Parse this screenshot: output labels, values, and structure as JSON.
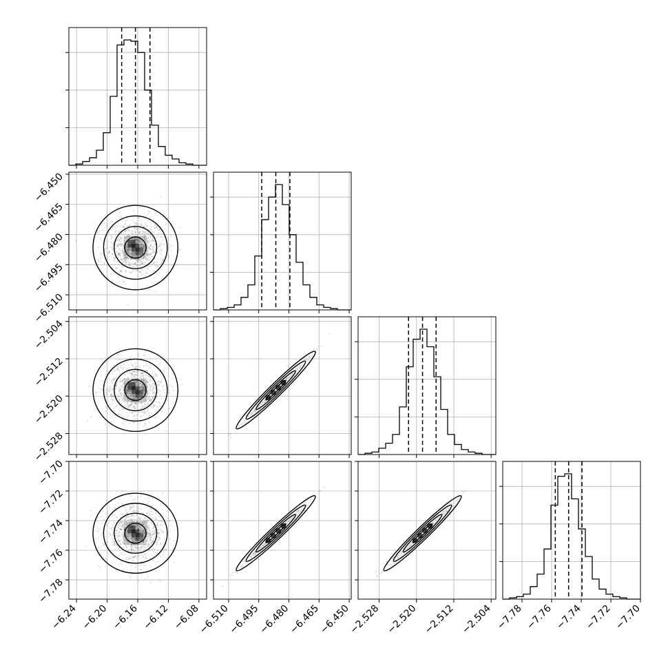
{
  "chart_data": {
    "type": "corner",
    "grid": true,
    "parameters": [
      {
        "index": 0,
        "range": [
          -6.25,
          -6.07
        ],
        "ticks": [
          "−6.24",
          "−6.20",
          "−6.16",
          "−6.12",
          "−6.08"
        ],
        "tick_values": [
          -6.24,
          -6.2,
          -6.16,
          -6.12,
          -6.08
        ],
        "median": -6.163,
        "quantiles": [
          -6.181,
          -6.144
        ]
      },
      {
        "index": 1,
        "range": [
          -6.5175,
          -6.449
        ],
        "ticks": [
          "−6.510",
          "−6.495",
          "−6.480",
          "−6.465",
          "−6.450"
        ],
        "tick_values": [
          -6.51,
          -6.495,
          -6.48,
          -6.465,
          -6.45
        ],
        "median": -6.4865,
        "quantiles": [
          -6.4935,
          -6.4795
        ]
      },
      {
        "index": 2,
        "range": [
          -2.5325,
          -2.503
        ],
        "ticks": [
          "−2.528",
          "−2.520",
          "−2.512",
          "−2.504"
        ],
        "tick_values": [
          -2.528,
          -2.52,
          -2.512,
          -2.504
        ],
        "median": -2.5187,
        "quantiles": [
          -2.5217,
          -2.5158
        ]
      },
      {
        "index": 3,
        "range": [
          -7.793,
          -7.7
        ],
        "ticks": [
          "−7.78",
          "−7.76",
          "−7.74",
          "−7.72",
          "−7.70"
        ],
        "tick_values": [
          -7.78,
          -7.76,
          -7.74,
          -7.72,
          -7.7
        ],
        "median": -7.7485,
        "quantiles": [
          -7.7575,
          -7.7395
        ]
      }
    ],
    "diagonal_histograms": [
      {
        "param": 0,
        "counts": [
          0,
          1,
          3,
          6,
          12,
          26,
          55,
          96,
          100,
          99,
          90,
          60,
          32,
          15,
          8,
          5,
          2,
          1,
          0,
          0
        ]
      },
      {
        "param": 1,
        "counts": [
          0,
          1,
          2,
          4,
          10,
          20,
          43,
          72,
          90,
          100,
          84,
          60,
          38,
          20,
          10,
          4,
          2,
          1,
          0,
          0
        ]
      },
      {
        "param": 2,
        "counts": [
          0,
          1,
          2,
          5,
          9,
          16,
          38,
          70,
          92,
          100,
          86,
          62,
          36,
          16,
          8,
          4,
          2,
          1,
          0,
          0
        ]
      },
      {
        "param": 3,
        "counts": [
          0,
          1,
          2,
          4,
          10,
          20,
          40,
          75,
          98,
          100,
          80,
          56,
          34,
          16,
          8,
          4,
          2,
          1,
          0,
          0
        ]
      }
    ],
    "pairs": [
      {
        "x": 0,
        "y": 1,
        "correlation": 0.0
      },
      {
        "x": 0,
        "y": 2,
        "correlation": 0.0
      },
      {
        "x": 1,
        "y": 2,
        "correlation": 0.99
      },
      {
        "x": 0,
        "y": 3,
        "correlation": 0.0
      },
      {
        "x": 1,
        "y": 3,
        "correlation": 0.99
      },
      {
        "x": 2,
        "y": 3,
        "correlation": 0.98
      }
    ],
    "contour_levels_sigma": [
      0.5,
      1.0,
      1.5,
      2.0
    ],
    "colors": {
      "line": "#000000",
      "grid": "#b0b0b0",
      "points": "#000000",
      "density": "#000000"
    }
  }
}
